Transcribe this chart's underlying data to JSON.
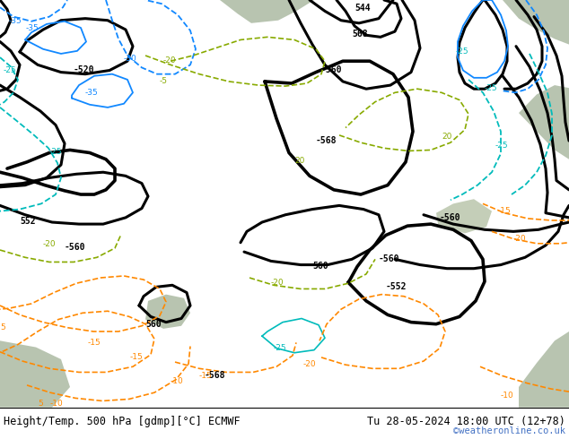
{
  "title_left": "Height/Temp. 500 hPa [gdmp][°C] ECMWF",
  "title_right": "Tu 28-05-2024 18:00 UTC (12+78)",
  "watermark": "©weatheronline.co.uk",
  "bg_green": "#c8e090",
  "gray_land": "#b8c4b0",
  "white_bg": "#ffffff",
  "watermark_color": "#4472c4",
  "fig_width": 6.34,
  "fig_height": 4.9,
  "dpi": 100
}
